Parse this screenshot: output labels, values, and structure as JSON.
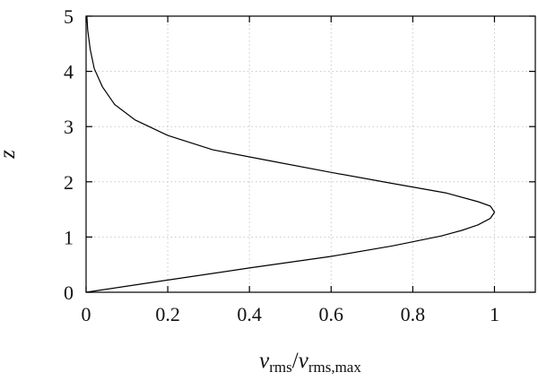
{
  "chart_data": {
    "type": "line",
    "title": "",
    "xlabel": {
      "main": "v",
      "sub": "rms",
      "sep": "/",
      "main2": "v",
      "sub2": "rms,max"
    },
    "ylabel": "z",
    "xlim": [
      0,
      1.1
    ],
    "ylim": [
      0,
      5
    ],
    "xticks": [
      0,
      0.2,
      0.4,
      0.6,
      0.8,
      1
    ],
    "xtick_labels": [
      "0",
      "0.2",
      "0.4",
      "0.6",
      "0.8",
      "1"
    ],
    "yticks": [
      0,
      1,
      2,
      3,
      4,
      5
    ],
    "ytick_labels": [
      "0",
      "1",
      "2",
      "3",
      "4",
      "5"
    ],
    "grid": true,
    "series": [
      {
        "x": [
          0.0,
          0.2,
          0.4,
          0.6,
          0.75,
          0.87,
          0.92,
          0.96,
          0.99,
          1.0,
          0.99,
          0.96,
          0.88,
          0.75,
          0.6,
          0.45,
          0.31,
          0.2,
          0.12,
          0.07,
          0.04,
          0.02,
          0.01,
          0.004,
          0.002
        ],
        "y": [
          0.0,
          0.22,
          0.44,
          0.65,
          0.84,
          1.02,
          1.12,
          1.22,
          1.34,
          1.45,
          1.56,
          1.64,
          1.8,
          1.97,
          2.17,
          2.38,
          2.58,
          2.84,
          3.12,
          3.4,
          3.72,
          4.05,
          4.4,
          4.75,
          5.0
        ]
      }
    ]
  }
}
